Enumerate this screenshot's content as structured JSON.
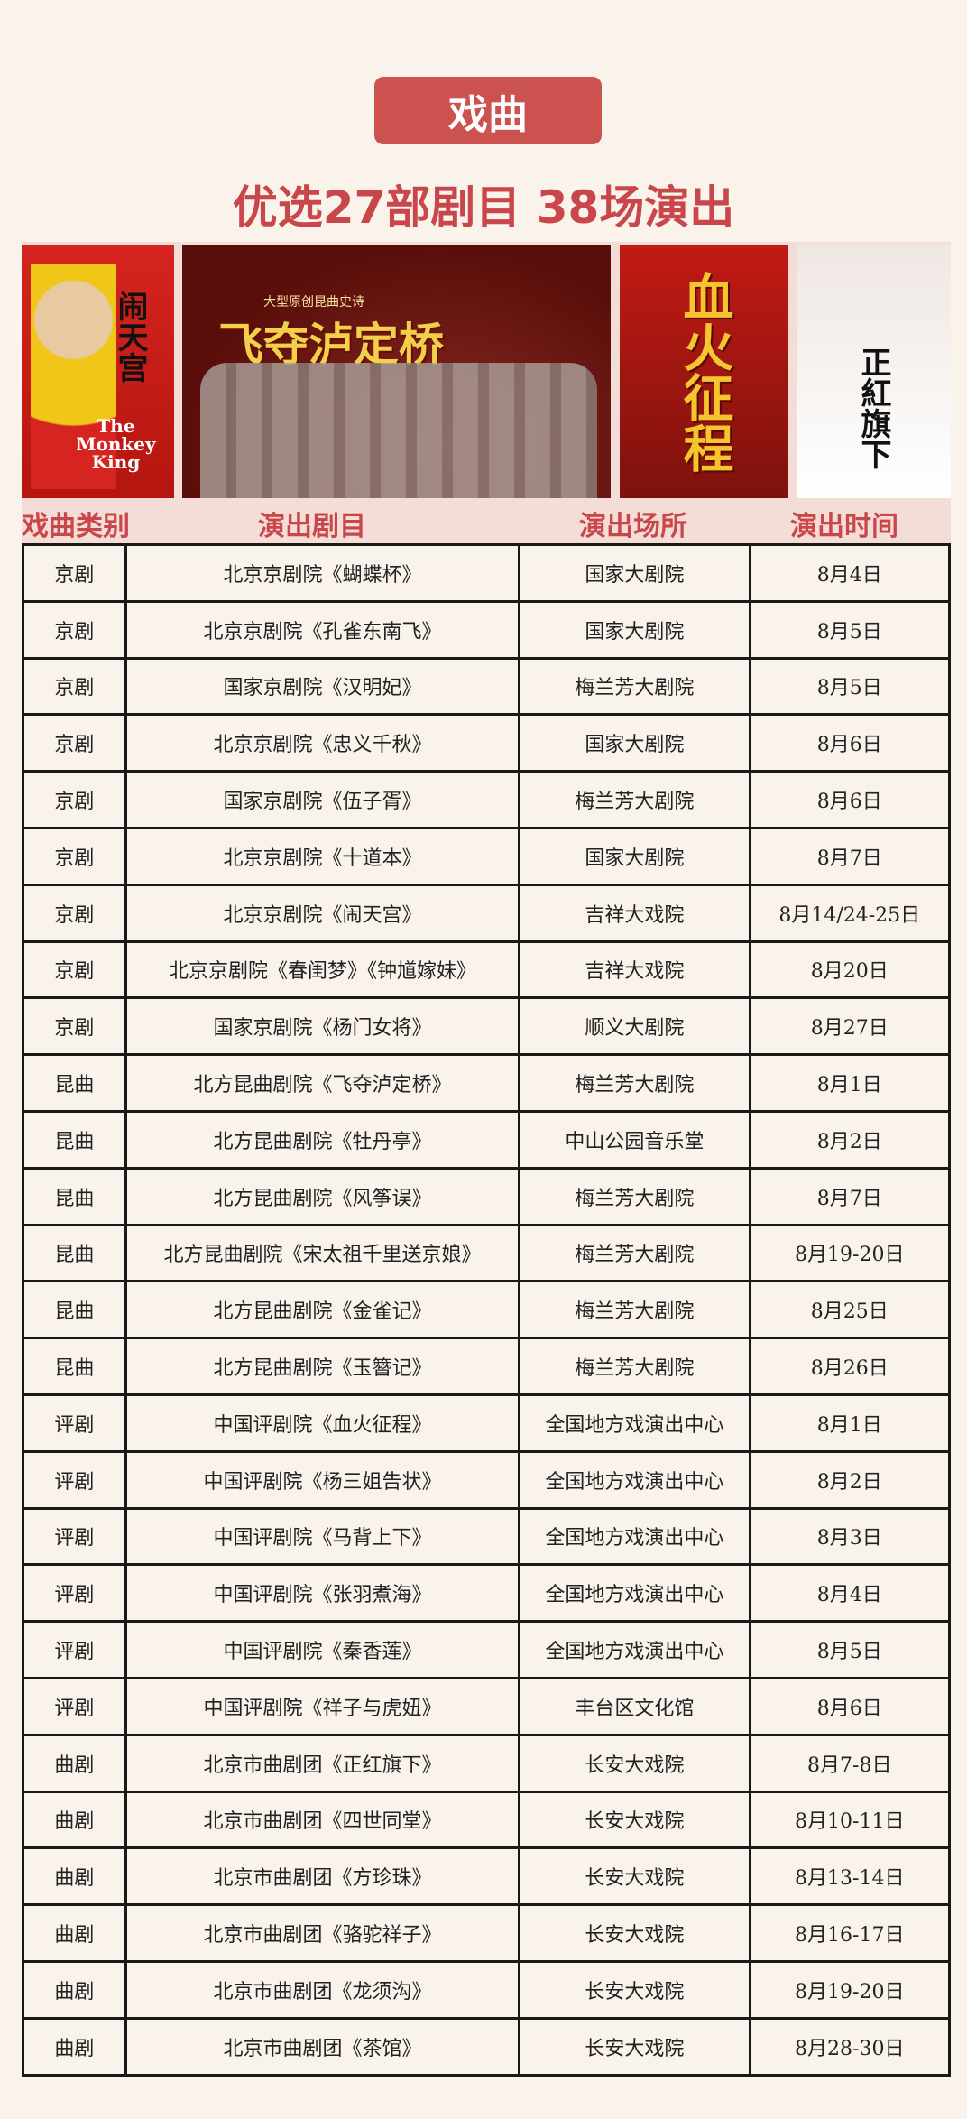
{
  "header": {
    "category_title": "戏曲",
    "subtitle": "优选27部剧目 38场演出"
  },
  "posters": [
    {
      "title": "闹天宫",
      "english": "The Monkey King"
    },
    {
      "tagline": "大型原创昆曲史诗",
      "title": "飞夺泸定桥"
    },
    {
      "title": "血火征程"
    },
    {
      "title": "正紅旗下"
    }
  ],
  "table": {
    "columns": [
      "戏曲类别",
      "演出剧目",
      "演出场所",
      "演出时间"
    ],
    "rows": [
      [
        "京剧",
        "北京京剧院《蝴蝶杯》",
        "国家大剧院",
        "8月4日"
      ],
      [
        "京剧",
        "北京京剧院《孔雀东南飞》",
        "国家大剧院",
        "8月5日"
      ],
      [
        "京剧",
        "国家京剧院《汉明妃》",
        "梅兰芳大剧院",
        "8月5日"
      ],
      [
        "京剧",
        "北京京剧院《忠义千秋》",
        "国家大剧院",
        "8月6日"
      ],
      [
        "京剧",
        "国家京剧院《伍子胥》",
        "梅兰芳大剧院",
        "8月6日"
      ],
      [
        "京剧",
        "北京京剧院《十道本》",
        "国家大剧院",
        "8月7日"
      ],
      [
        "京剧",
        "北京京剧院《闹天宫》",
        "吉祥大戏院",
        "8月14/24-25日"
      ],
      [
        "京剧",
        "北京京剧院《春闺梦》《钟馗嫁妹》",
        "吉祥大戏院",
        "8月20日"
      ],
      [
        "京剧",
        "国家京剧院《杨门女将》",
        "顺义大剧院",
        "8月27日"
      ],
      [
        "昆曲",
        "北方昆曲剧院《飞夺泸定桥》",
        "梅兰芳大剧院",
        "8月1日"
      ],
      [
        "昆曲",
        "北方昆曲剧院《牡丹亭》",
        "中山公园音乐堂",
        "8月2日"
      ],
      [
        "昆曲",
        "北方昆曲剧院《风筝误》",
        "梅兰芳大剧院",
        "8月7日"
      ],
      [
        "昆曲",
        "北方昆曲剧院《宋太祖千里送京娘》",
        "梅兰芳大剧院",
        "8月19-20日"
      ],
      [
        "昆曲",
        "北方昆曲剧院《金雀记》",
        "梅兰芳大剧院",
        "8月25日"
      ],
      [
        "昆曲",
        "北方昆曲剧院《玉簪记》",
        "梅兰芳大剧院",
        "8月26日"
      ],
      [
        "评剧",
        "中国评剧院《血火征程》",
        "全国地方戏演出中心",
        "8月1日"
      ],
      [
        "评剧",
        "中国评剧院《杨三姐告状》",
        "全国地方戏演出中心",
        "8月2日"
      ],
      [
        "评剧",
        "中国评剧院《马背上下》",
        "全国地方戏演出中心",
        "8月3日"
      ],
      [
        "评剧",
        "中国评剧院《张羽煮海》",
        "全国地方戏演出中心",
        "8月4日"
      ],
      [
        "评剧",
        "中国评剧院《秦香莲》",
        "全国地方戏演出中心",
        "8月5日"
      ],
      [
        "评剧",
        "中国评剧院《祥子与虎妞》",
        "丰台区文化馆",
        "8月6日"
      ],
      [
        "曲剧",
        "北京市曲剧团《正红旗下》",
        "长安大戏院",
        "8月7-8日"
      ],
      [
        "曲剧",
        "北京市曲剧团《四世同堂》",
        "长安大戏院",
        "8月10-11日"
      ],
      [
        "曲剧",
        "北京市曲剧团《方珍珠》",
        "长安大戏院",
        "8月13-14日"
      ],
      [
        "曲剧",
        "北京市曲剧团《骆驼祥子》",
        "长安大戏院",
        "8月16-17日"
      ],
      [
        "曲剧",
        "北京市曲剧团《龙须沟》",
        "长安大戏院",
        "8月19-20日"
      ],
      [
        "曲剧",
        "北京市曲剧团《茶馆》",
        "长安大戏院",
        "8月28-30日"
      ]
    ]
  },
  "colors": {
    "accent": "#cc5250",
    "title_text": "#c9474a",
    "header_bg": "#f4ddd6",
    "page_bg": "#f9f3ec"
  }
}
